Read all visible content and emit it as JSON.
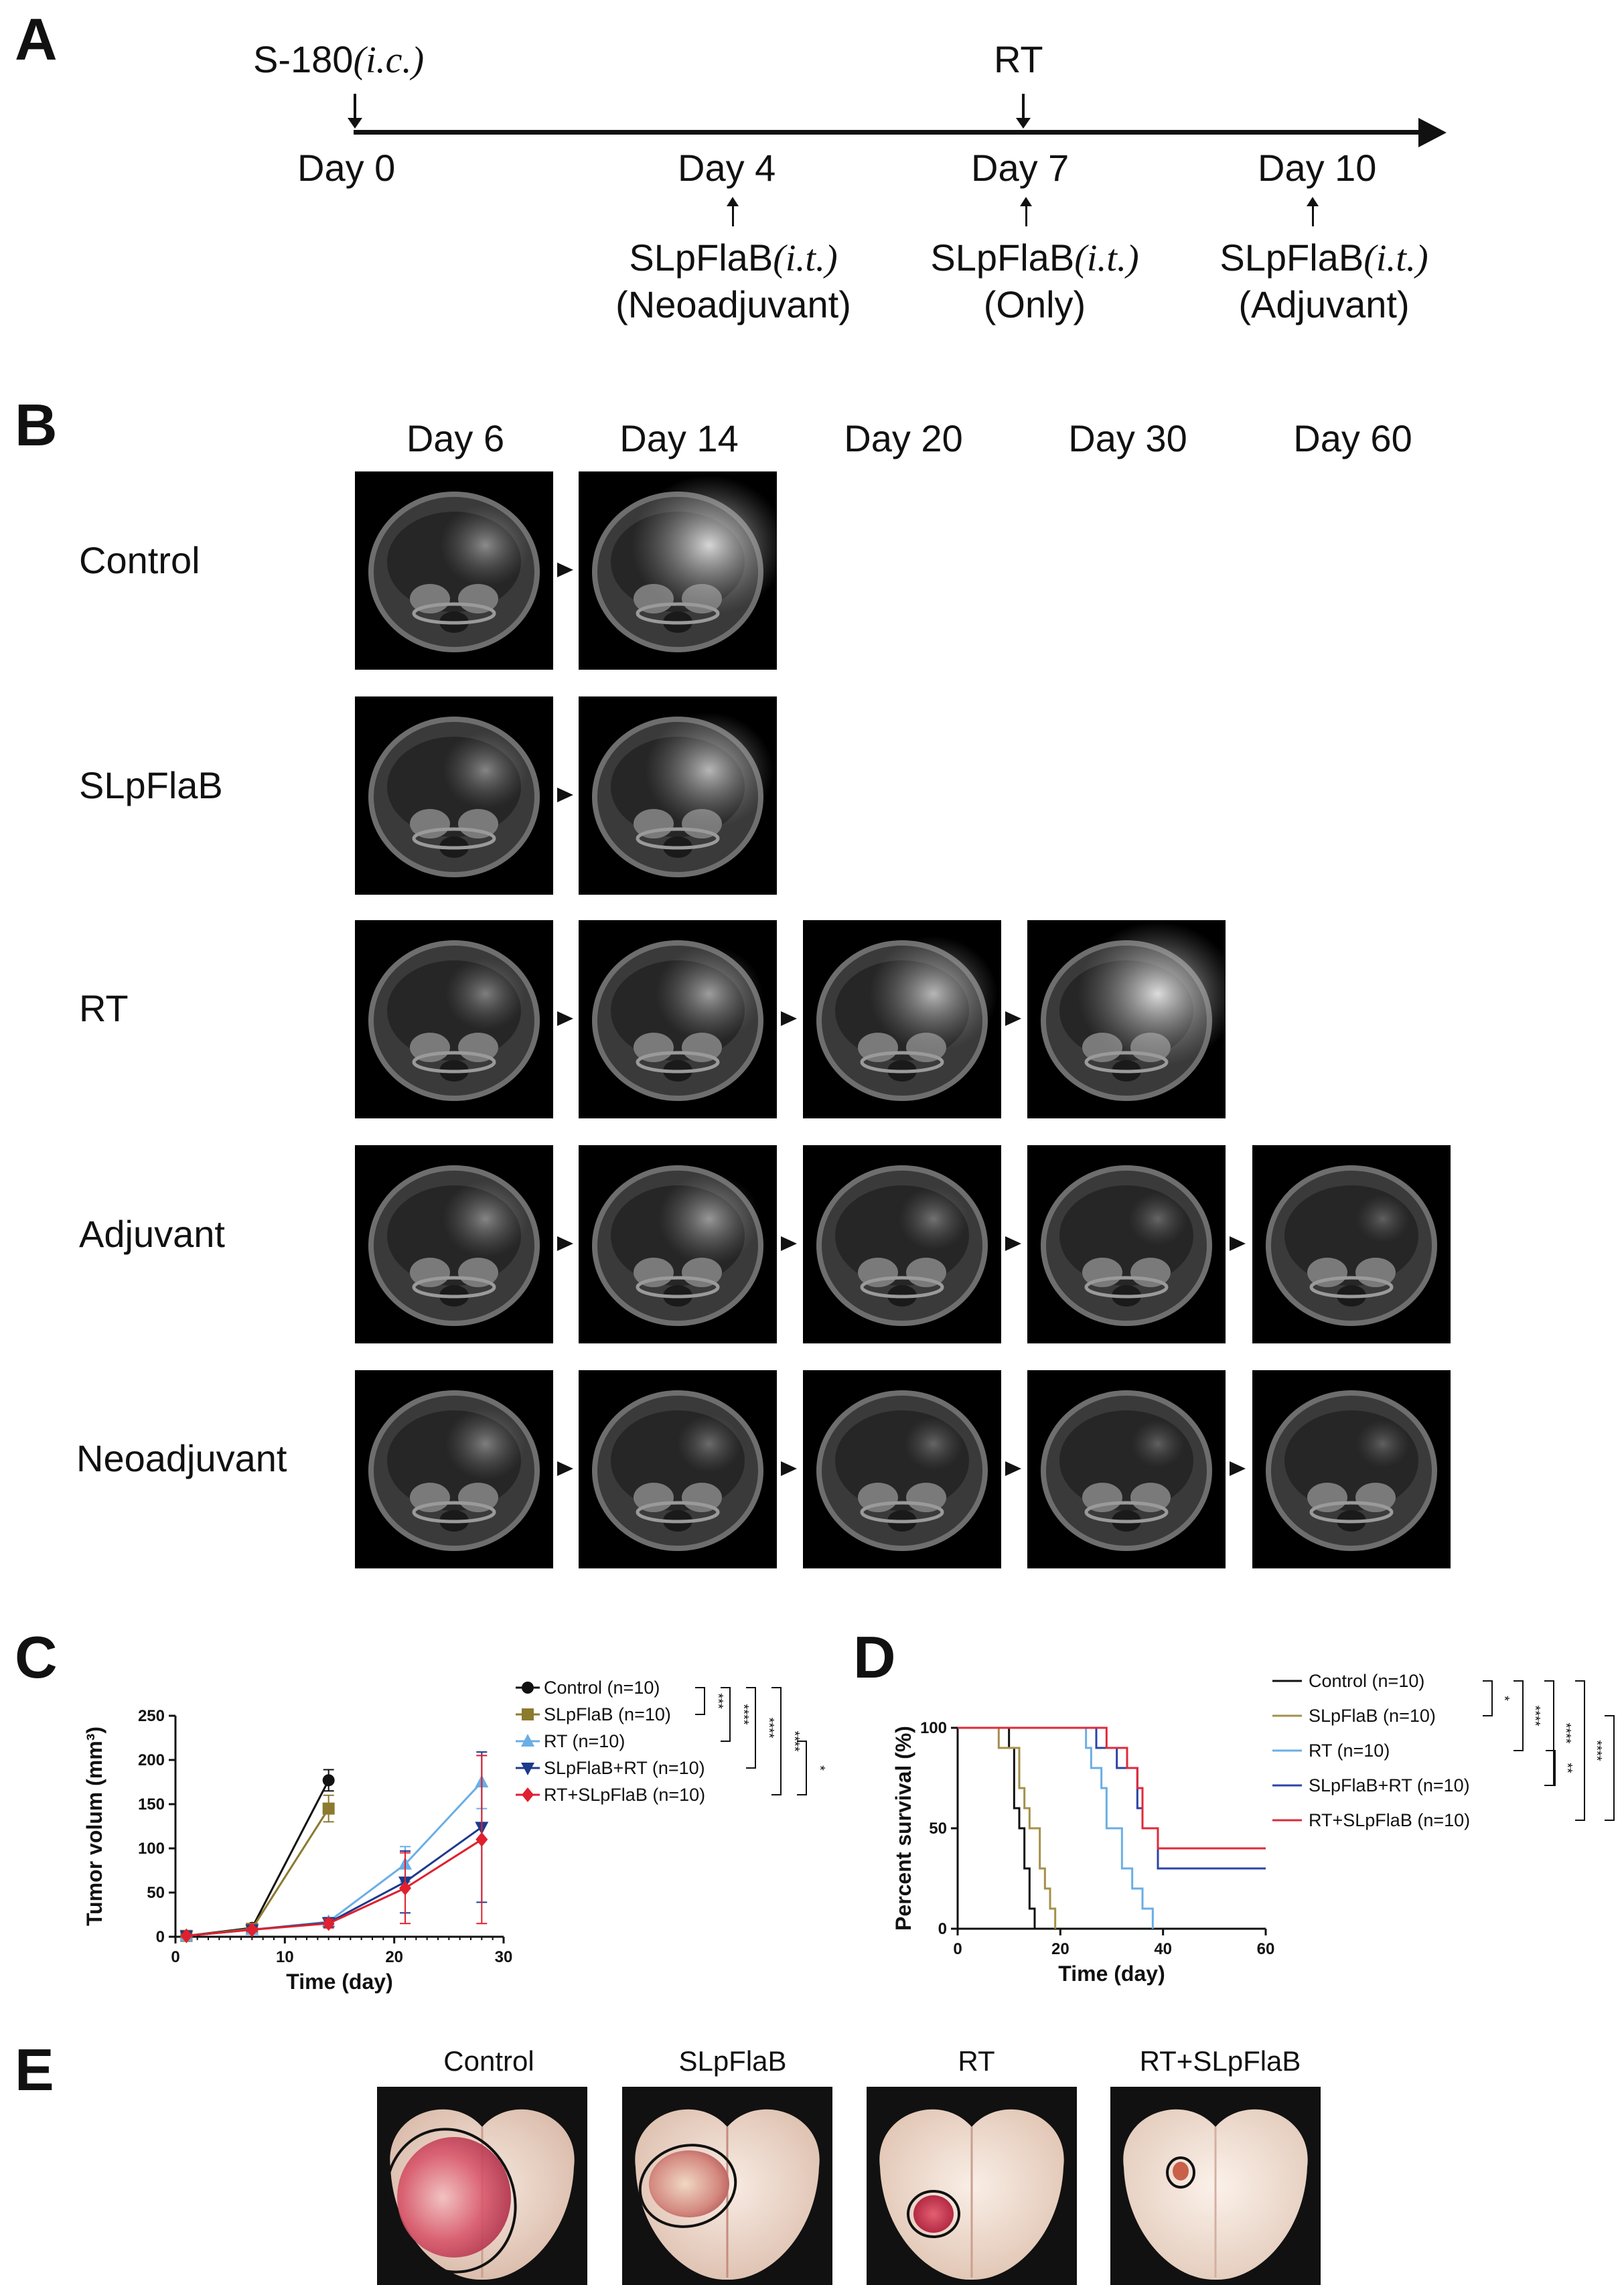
{
  "panels": {
    "a": {
      "letter": "A"
    },
    "b": {
      "letter": "B"
    },
    "c": {
      "letter": "C"
    },
    "d": {
      "letter": "D"
    },
    "e": {
      "letter": "E"
    }
  },
  "timeline": {
    "injection": "S-180",
    "injection_route": "(i.c.)",
    "rt_label": "RT",
    "days": [
      "Day 0",
      "Day 4",
      "Day 7",
      "Day 10"
    ],
    "treatments": [
      {
        "drug": "SLpFlaB",
        "route": "(i.t.)",
        "note": "(Neoadjuvant)"
      },
      {
        "drug": "SLpFlaB",
        "route": "(i.t.)",
        "note": "(Only)"
      },
      {
        "drug": "SLpFlaB",
        "route": "(i.t.)",
        "note": "(Adjuvant)"
      }
    ]
  },
  "mri": {
    "day_headers": [
      "Day 6",
      "Day 14",
      "Day 20",
      "Day 30",
      "Day 60"
    ],
    "rows": [
      "Control",
      "SLpFlaB",
      "RT",
      "Adjuvant",
      "Neoadjuvant"
    ]
  },
  "chart_data": [
    {
      "type": "line",
      "xlabel": "Time (day)",
      "ylabel": "Tumor volum (mm³)",
      "xlim": [
        0,
        30
      ],
      "ylim": [
        0,
        250
      ],
      "xticks": [
        "0",
        "10",
        "20",
        "30"
      ],
      "yticks": [
        "0",
        "50",
        "100",
        "150",
        "200",
        "250"
      ],
      "legend_placement": "top-right",
      "series": [
        {
          "name": "Control (n=10)",
          "color": "#111111",
          "marker": "circle",
          "x": [
            1,
            7,
            14
          ],
          "y": [
            1,
            10,
            177
          ],
          "err": [
            0,
            2,
            12
          ]
        },
        {
          "name": "SLpFlaB (n=10)",
          "color": "#8c7a2e",
          "marker": "square",
          "x": [
            1,
            7,
            14
          ],
          "y": [
            1,
            9,
            145
          ],
          "err": [
            0,
            2,
            15
          ]
        },
        {
          "name": "RT (n=10)",
          "color": "#6aaee6",
          "marker": "triangle-up",
          "x": [
            1,
            7,
            14,
            21,
            28
          ],
          "y": [
            1,
            8,
            17,
            82,
            175
          ],
          "err": [
            0,
            2,
            5,
            20,
            30
          ]
        },
        {
          "name": "SLpFlaB+RT (n=10)",
          "color": "#1c3a8c",
          "marker": "triangle-down",
          "x": [
            1,
            7,
            14,
            21,
            28
          ],
          "y": [
            1,
            8,
            16,
            62,
            124
          ],
          "err": [
            0,
            2,
            5,
            35,
            85
          ]
        },
        {
          "name": "RT+SLpFlaB (n=10)",
          "color": "#e0202e",
          "marker": "diamond",
          "x": [
            1,
            7,
            14,
            21,
            28
          ],
          "y": [
            1,
            8,
            15,
            55,
            110
          ],
          "err": [
            0,
            2,
            5,
            40,
            95
          ]
        }
      ],
      "significance": [
        "***",
        "****",
        "****",
        "****",
        "*"
      ]
    },
    {
      "type": "line",
      "xlabel": "Time (day)",
      "ylabel": "Percent survival (%)",
      "xlim": [
        0,
        60
      ],
      "ylim": [
        0,
        100
      ],
      "xticks": [
        "0",
        "20",
        "40",
        "60"
      ],
      "yticks": [
        "0",
        "50",
        "100"
      ],
      "legend_placement": "top-right",
      "series": [
        {
          "name": "Control (n=10)",
          "color": "#111111",
          "steps": [
            [
              0,
              100
            ],
            [
              10,
              90
            ],
            [
              11,
              60
            ],
            [
              12,
              50
            ],
            [
              13,
              30
            ],
            [
              14,
              10
            ],
            [
              15,
              0
            ]
          ]
        },
        {
          "name": "SLpFlaB (n=10)",
          "color": "#a4904a",
          "steps": [
            [
              0,
              100
            ],
            [
              8,
              90
            ],
            [
              12,
              70
            ],
            [
              13,
              60
            ],
            [
              14,
              50
            ],
            [
              16,
              30
            ],
            [
              17,
              20
            ],
            [
              18,
              10
            ],
            [
              19,
              0
            ]
          ]
        },
        {
          "name": "RT (n=10)",
          "color": "#6aaee6",
          "steps": [
            [
              0,
              100
            ],
            [
              25,
              90
            ],
            [
              26,
              80
            ],
            [
              28,
              70
            ],
            [
              29,
              50
            ],
            [
              32,
              30
            ],
            [
              34,
              20
            ],
            [
              36,
              10
            ],
            [
              38,
              0
            ]
          ]
        },
        {
          "name": "SLpFlaB+RT (n=10)",
          "color": "#2b44a8",
          "steps": [
            [
              0,
              100
            ],
            [
              27,
              90
            ],
            [
              31,
              80
            ],
            [
              35,
              60
            ],
            [
              36,
              50
            ],
            [
              39,
              30
            ],
            [
              60,
              30
            ]
          ]
        },
        {
          "name": "RT+SLpFlaB (n=10)",
          "color": "#e02a3a",
          "steps": [
            [
              0,
              100
            ],
            [
              29,
              90
            ],
            [
              33,
              80
            ],
            [
              35,
              70
            ],
            [
              36,
              50
            ],
            [
              39,
              40
            ],
            [
              60,
              40
            ]
          ]
        }
      ],
      "significance": [
        "*",
        "****",
        "****",
        "****",
        "**",
        "**"
      ]
    }
  ],
  "brains": {
    "labels": [
      "Control",
      "SLpFlaB",
      "RT",
      "RT+SLpFlaB"
    ]
  }
}
